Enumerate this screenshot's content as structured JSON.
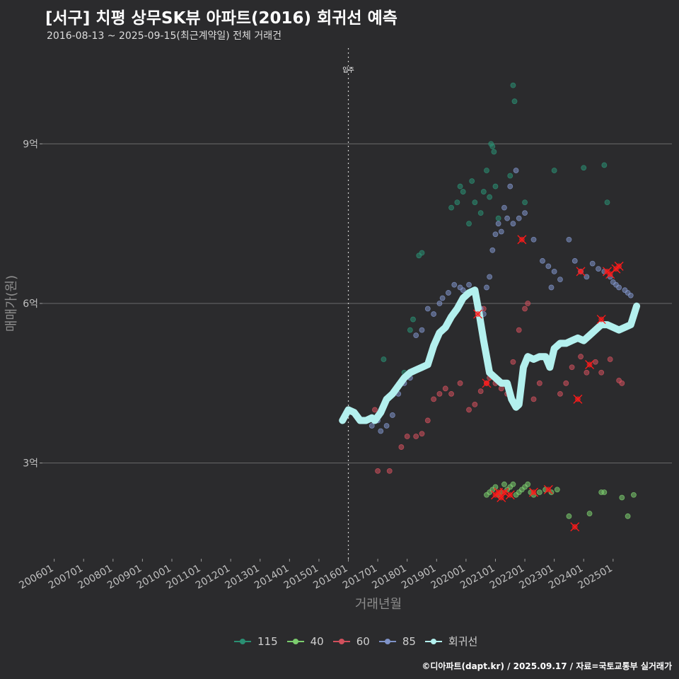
{
  "header": {
    "title": "[서구] 치평 상무SK뷰 아파트(2016) 회귀선 예측",
    "subtitle": "2016-08-13 ~ 2025-09-15(최근계약일) 전체 거래건"
  },
  "credit": "©디아파트(dapt.kr) / 2025.09.17 / 자료=국토교통부 실거래가",
  "chart_data": {
    "type": "scatter",
    "title": "[서구] 치평 상무SK뷰 아파트(2016) 회귀선 예측",
    "xlabel": "거래년월",
    "ylabel": "매매가(원)",
    "xlim": [
      2005.6,
      2027.0
    ],
    "ylim": [
      1.2,
      10.8
    ],
    "x_ticks": [
      2006,
      2007,
      2008,
      2009,
      2010,
      2011,
      2012,
      2013,
      2014,
      2015,
      2016,
      2017,
      2018,
      2019,
      2020,
      2021,
      2022,
      2023,
      2024,
      2025
    ],
    "x_tick_labels": [
      "200601",
      "200701",
      "200801",
      "200901",
      "201001",
      "201101",
      "201201",
      "201301",
      "201401",
      "201501",
      "201601",
      "201701",
      "201801",
      "201901",
      "202001",
      "202101",
      "202201",
      "202301",
      "202401",
      "202501"
    ],
    "y_ticks": [
      3,
      6,
      9
    ],
    "y_tick_labels": [
      "3억",
      "6억",
      "9억"
    ],
    "annotation": {
      "x": 2016.0,
      "label": "입주"
    },
    "colors": {
      "115": "#2a8f73",
      "40": "#7ccd6e",
      "60": "#d1505c",
      "85": "#7f93c8",
      "regression": "#b3f0ee",
      "cancelled": "#ff1a1a"
    },
    "series": [
      {
        "name": "115",
        "points": [
          [
            2017.2,
            4.95
          ],
          [
            2017.6,
            4.35
          ],
          [
            2017.9,
            4.7
          ],
          [
            2018.1,
            5.5
          ],
          [
            2018.2,
            5.7
          ],
          [
            2018.4,
            6.9
          ],
          [
            2018.5,
            6.95
          ],
          [
            2019.5,
            7.8
          ],
          [
            2019.7,
            7.9
          ],
          [
            2019.8,
            8.2
          ],
          [
            2019.9,
            8.1
          ],
          [
            2020.1,
            7.5
          ],
          [
            2020.2,
            8.3
          ],
          [
            2020.3,
            7.9
          ],
          [
            2020.5,
            7.7
          ],
          [
            2020.6,
            8.1
          ],
          [
            2020.7,
            8.5
          ],
          [
            2020.8,
            8.0
          ],
          [
            2020.85,
            9.0
          ],
          [
            2020.9,
            8.95
          ],
          [
            2020.95,
            8.85
          ],
          [
            2021.0,
            8.2
          ],
          [
            2021.1,
            7.6
          ],
          [
            2021.5,
            8.4
          ],
          [
            2021.6,
            10.1
          ],
          [
            2021.65,
            9.8
          ],
          [
            2022.0,
            7.9
          ],
          [
            2023.0,
            8.5
          ],
          [
            2024.0,
            8.55
          ],
          [
            2024.7,
            8.6
          ],
          [
            2024.8,
            7.9
          ]
        ]
      },
      {
        "name": "40",
        "points": [
          [
            2020.7,
            2.4
          ],
          [
            2020.8,
            2.45
          ],
          [
            2020.9,
            2.5
          ],
          [
            2021.0,
            2.55
          ],
          [
            2021.1,
            2.4
          ],
          [
            2021.2,
            2.45
          ],
          [
            2021.3,
            2.6
          ],
          [
            2021.4,
            2.5
          ],
          [
            2021.5,
            2.55
          ],
          [
            2021.6,
            2.6
          ],
          [
            2021.7,
            2.4
          ],
          [
            2021.8,
            2.45
          ],
          [
            2021.9,
            2.5
          ],
          [
            2022.0,
            2.55
          ],
          [
            2022.1,
            2.6
          ],
          [
            2022.2,
            2.45
          ],
          [
            2022.3,
            2.4
          ],
          [
            2022.5,
            2.45
          ],
          [
            2022.7,
            2.5
          ],
          [
            2022.9,
            2.45
          ],
          [
            2023.1,
            2.5
          ],
          [
            2023.5,
            2.0
          ],
          [
            2024.2,
            2.05
          ],
          [
            2024.6,
            2.45
          ],
          [
            2024.7,
            2.45
          ],
          [
            2025.3,
            2.35
          ],
          [
            2025.5,
            2.0
          ],
          [
            2025.7,
            2.4
          ]
        ]
      },
      {
        "name": "60",
        "points": [
          [
            2016.9,
            4.0
          ],
          [
            2017.0,
            2.85
          ],
          [
            2017.4,
            2.85
          ],
          [
            2017.8,
            3.3
          ],
          [
            2018.0,
            3.5
          ],
          [
            2018.3,
            3.5
          ],
          [
            2018.5,
            3.55
          ],
          [
            2018.7,
            3.8
          ],
          [
            2018.9,
            4.2
          ],
          [
            2019.1,
            4.3
          ],
          [
            2019.3,
            4.4
          ],
          [
            2019.5,
            4.3
          ],
          [
            2019.8,
            4.5
          ],
          [
            2020.1,
            4.0
          ],
          [
            2020.3,
            4.1
          ],
          [
            2020.5,
            4.35
          ],
          [
            2020.6,
            5.9
          ],
          [
            2020.7,
            4.5
          ],
          [
            2020.8,
            4.6
          ],
          [
            2021.0,
            4.5
          ],
          [
            2021.2,
            4.4
          ],
          [
            2021.4,
            4.3
          ],
          [
            2021.6,
            4.9
          ],
          [
            2021.8,
            5.5
          ],
          [
            2022.0,
            5.9
          ],
          [
            2022.1,
            6.0
          ],
          [
            2022.3,
            4.2
          ],
          [
            2022.5,
            4.5
          ],
          [
            2022.8,
            4.9
          ],
          [
            2023.0,
            5.1
          ],
          [
            2023.2,
            4.3
          ],
          [
            2023.4,
            4.5
          ],
          [
            2023.6,
            4.8
          ],
          [
            2023.9,
            5.0
          ],
          [
            2024.1,
            4.7
          ],
          [
            2024.4,
            4.9
          ],
          [
            2024.6,
            4.7
          ],
          [
            2024.9,
            4.95
          ],
          [
            2025.2,
            4.55
          ],
          [
            2025.3,
            4.5
          ]
        ]
      },
      {
        "name": "85",
        "points": [
          [
            2016.8,
            3.7
          ],
          [
            2017.0,
            3.8
          ],
          [
            2017.1,
            3.6
          ],
          [
            2017.3,
            3.7
          ],
          [
            2017.5,
            3.9
          ],
          [
            2017.7,
            4.3
          ],
          [
            2017.9,
            4.5
          ],
          [
            2018.1,
            4.6
          ],
          [
            2018.3,
            5.4
          ],
          [
            2018.5,
            5.5
          ],
          [
            2018.7,
            5.9
          ],
          [
            2018.9,
            5.8
          ],
          [
            2019.1,
            6.0
          ],
          [
            2019.2,
            6.1
          ],
          [
            2019.4,
            6.2
          ],
          [
            2019.6,
            6.35
          ],
          [
            2019.8,
            6.3
          ],
          [
            2019.9,
            6.25
          ],
          [
            2020.1,
            6.35
          ],
          [
            2020.3,
            6.2
          ],
          [
            2020.4,
            6.0
          ],
          [
            2020.5,
            5.9
          ],
          [
            2020.6,
            5.8
          ],
          [
            2020.7,
            6.3
          ],
          [
            2020.8,
            6.5
          ],
          [
            2020.9,
            7.0
          ],
          [
            2021.0,
            7.3
          ],
          [
            2021.1,
            7.5
          ],
          [
            2021.2,
            7.35
          ],
          [
            2021.3,
            7.8
          ],
          [
            2021.4,
            7.6
          ],
          [
            2021.5,
            8.2
          ],
          [
            2021.6,
            7.5
          ],
          [
            2021.7,
            8.5
          ],
          [
            2021.8,
            7.6
          ],
          [
            2022.0,
            7.7
          ],
          [
            2022.3,
            7.2
          ],
          [
            2022.6,
            6.8
          ],
          [
            2022.8,
            6.7
          ],
          [
            2022.9,
            6.3
          ],
          [
            2023.0,
            6.6
          ],
          [
            2023.2,
            6.45
          ],
          [
            2023.5,
            7.2
          ],
          [
            2023.7,
            6.8
          ],
          [
            2023.9,
            6.6
          ],
          [
            2024.1,
            6.5
          ],
          [
            2024.3,
            6.75
          ],
          [
            2024.5,
            6.65
          ],
          [
            2024.7,
            6.6
          ],
          [
            2024.9,
            6.5
          ],
          [
            2025.0,
            6.4
          ],
          [
            2025.1,
            6.35
          ],
          [
            2025.2,
            6.3
          ],
          [
            2025.4,
            6.25
          ],
          [
            2025.5,
            6.2
          ],
          [
            2025.6,
            6.15
          ]
        ]
      }
    ],
    "cancelled_points": [
      [
        2020.4,
        5.8
      ],
      [
        2020.7,
        4.5
      ],
      [
        2021.0,
        2.4
      ],
      [
        2021.1,
        2.45
      ],
      [
        2021.2,
        2.35
      ],
      [
        2021.3,
        2.45
      ],
      [
        2021.5,
        2.4
      ],
      [
        2021.9,
        7.2
      ],
      [
        2022.3,
        2.45
      ],
      [
        2022.8,
        2.5
      ],
      [
        2023.7,
        1.8
      ],
      [
        2023.8,
        4.2
      ],
      [
        2023.9,
        6.6
      ],
      [
        2024.2,
        4.85
      ],
      [
        2024.6,
        5.7
      ],
      [
        2024.8,
        6.6
      ],
      [
        2024.9,
        6.55
      ],
      [
        2025.1,
        6.65
      ],
      [
        2025.2,
        6.7
      ]
    ],
    "regression": {
      "name": "회귀선",
      "points": [
        [
          2015.8,
          3.8
        ],
        [
          2016.0,
          4.0
        ],
        [
          2016.2,
          3.95
        ],
        [
          2016.4,
          3.8
        ],
        [
          2016.6,
          3.8
        ],
        [
          2016.8,
          3.85
        ],
        [
          2016.9,
          3.8
        ],
        [
          2017.1,
          3.95
        ],
        [
          2017.3,
          4.2
        ],
        [
          2017.5,
          4.3
        ],
        [
          2017.7,
          4.45
        ],
        [
          2017.9,
          4.6
        ],
        [
          2018.1,
          4.7
        ],
        [
          2018.3,
          4.75
        ],
        [
          2018.5,
          4.8
        ],
        [
          2018.7,
          4.85
        ],
        [
          2018.9,
          5.2
        ],
        [
          2019.1,
          5.45
        ],
        [
          2019.3,
          5.55
        ],
        [
          2019.5,
          5.75
        ],
        [
          2019.7,
          5.9
        ],
        [
          2019.9,
          6.1
        ],
        [
          2020.1,
          6.2
        ],
        [
          2020.3,
          6.25
        ],
        [
          2020.45,
          5.8
        ],
        [
          2020.6,
          5.3
        ],
        [
          2020.8,
          4.7
        ],
        [
          2021.0,
          4.6
        ],
        [
          2021.2,
          4.5
        ],
        [
          2021.4,
          4.5
        ],
        [
          2021.55,
          4.2
        ],
        [
          2021.7,
          4.05
        ],
        [
          2021.8,
          4.1
        ],
        [
          2021.95,
          4.8
        ],
        [
          2022.1,
          5.0
        ],
        [
          2022.3,
          4.95
        ],
        [
          2022.5,
          5.0
        ],
        [
          2022.7,
          5.0
        ],
        [
          2022.85,
          4.8
        ],
        [
          2023.0,
          5.15
        ],
        [
          2023.2,
          5.25
        ],
        [
          2023.4,
          5.25
        ],
        [
          2023.6,
          5.3
        ],
        [
          2023.8,
          5.35
        ],
        [
          2024.0,
          5.3
        ],
        [
          2024.2,
          5.4
        ],
        [
          2024.4,
          5.5
        ],
        [
          2024.6,
          5.6
        ],
        [
          2024.8,
          5.6
        ],
        [
          2025.0,
          5.55
        ],
        [
          2025.2,
          5.5
        ],
        [
          2025.4,
          5.55
        ],
        [
          2025.6,
          5.6
        ],
        [
          2025.8,
          5.95
        ]
      ]
    },
    "legend": [
      {
        "label": "115",
        "color": "#2a8f73"
      },
      {
        "label": "40",
        "color": "#7ccd6e"
      },
      {
        "label": "60",
        "color": "#d1505c"
      },
      {
        "label": "85",
        "color": "#7f93c8"
      },
      {
        "label": "회귀선",
        "color": "#b3f0ee"
      }
    ]
  }
}
